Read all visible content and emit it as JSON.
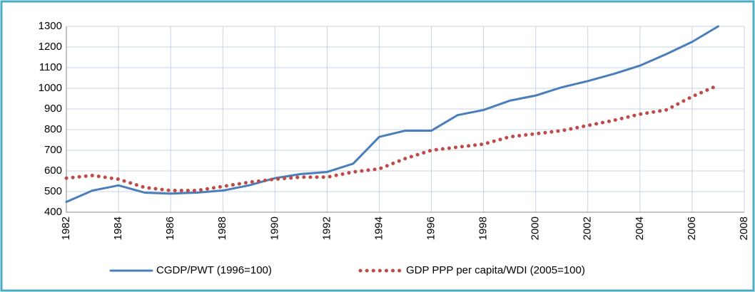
{
  "chart_data": {
    "type": "line",
    "x": [
      1982,
      1983,
      1984,
      1985,
      1986,
      1987,
      1988,
      1989,
      1990,
      1991,
      1992,
      1993,
      1994,
      1995,
      1996,
      1997,
      1998,
      1999,
      2000,
      2001,
      2002,
      2003,
      2004,
      2005,
      2006,
      2007
    ],
    "series": [
      {
        "name": "CGDP/PWT (1996=100)",
        "color": "#4a7ebb",
        "style": "solid",
        "values": [
          450,
          505,
          530,
          495,
          490,
          495,
          505,
          530,
          565,
          585,
          595,
          635,
          765,
          795,
          795,
          870,
          895,
          940,
          965,
          1005,
          1035,
          1070,
          1110,
          1165,
          1225,
          1300
        ]
      },
      {
        "name": "GDP PPP per capita/WDI (2005=100)",
        "color": "#be4b48",
        "style": "dotted",
        "values": [
          565,
          578,
          560,
          520,
          505,
          505,
          525,
          545,
          560,
          570,
          570,
          595,
          610,
          660,
          700,
          715,
          730,
          765,
          780,
          795,
          820,
          845,
          875,
          895,
          960,
          1015
        ]
      }
    ],
    "xlim": [
      1982,
      2008
    ],
    "xticks": [
      1982,
      1984,
      1986,
      1988,
      1990,
      1992,
      1994,
      1996,
      1998,
      2000,
      2002,
      2004,
      2006,
      2008
    ],
    "ylim": [
      400,
      1300
    ],
    "yticks": [
      400,
      500,
      600,
      700,
      800,
      900,
      1000,
      1100,
      1200,
      1300
    ],
    "grid": true,
    "legend": "bottom"
  }
}
